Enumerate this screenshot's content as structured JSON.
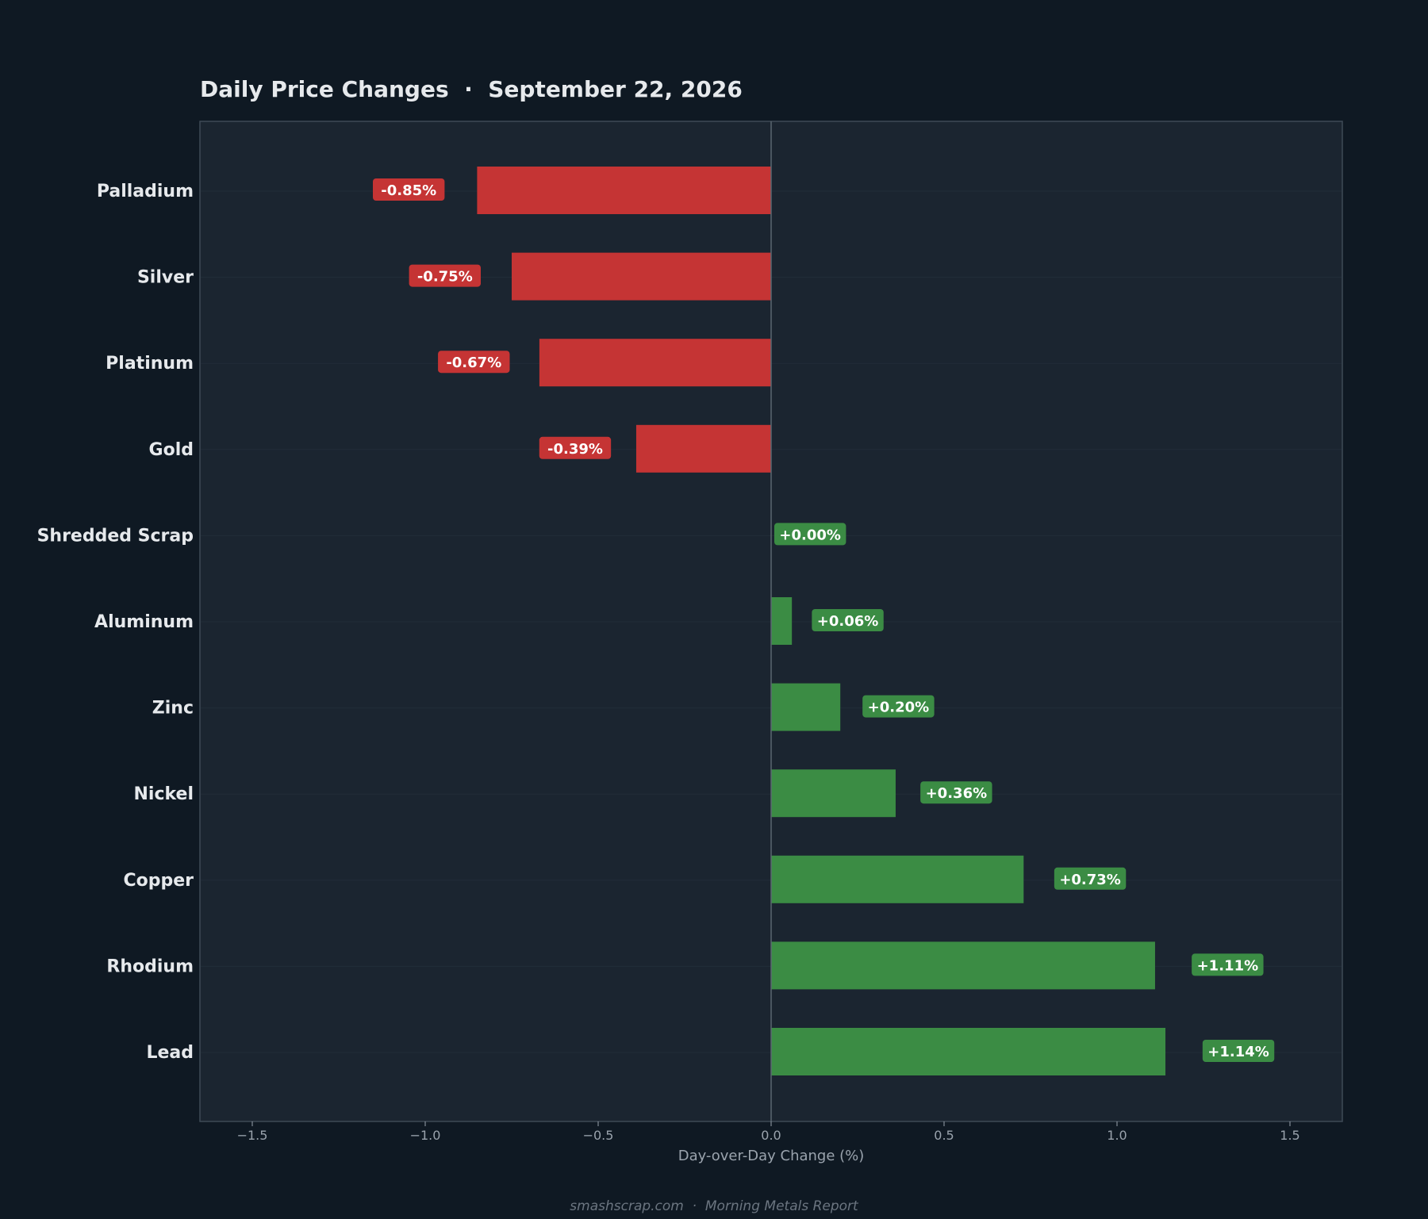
{
  "chart_data": {
    "type": "bar",
    "orientation": "horizontal",
    "title": "Daily Price Changes  ·  September 22, 2026",
    "xlabel": "Day-over-Day Change (%)",
    "ylabel": "",
    "categories": [
      "Palladium",
      "Silver",
      "Platinum",
      "Gold",
      "Shredded Scrap",
      "Aluminum",
      "Zinc",
      "Nickel",
      "Copper",
      "Rhodium",
      "Lead"
    ],
    "values": [
      -0.85,
      -0.75,
      -0.67,
      -0.39,
      0.0,
      0.06,
      0.2,
      0.36,
      0.73,
      1.11,
      1.14
    ],
    "value_labels": [
      "-0.85%",
      "-0.75%",
      "-0.67%",
      "-0.39%",
      "+0.00%",
      "+0.06%",
      "+0.20%",
      "+0.36%",
      "+0.73%",
      "+1.11%",
      "+1.14%"
    ],
    "xlim": [
      -1.65,
      1.65
    ],
    "xticks": [
      -1.5,
      -1.0,
      -0.5,
      0.0,
      0.5,
      1.0,
      1.5
    ],
    "xtick_labels": [
      "−1.5",
      "−1.0",
      "−0.5",
      "0.0",
      "0.5",
      "1.0",
      "1.5"
    ],
    "grid": false,
    "legend": "none",
    "colors": {
      "negative": "#c53434",
      "positive": "#3b8c44",
      "plot_background": "#1b2530",
      "page_background": "#0f1923",
      "zero_line": "#5b6670"
    }
  },
  "footer": "smashscrap.com  ·  Morning Metals Report"
}
